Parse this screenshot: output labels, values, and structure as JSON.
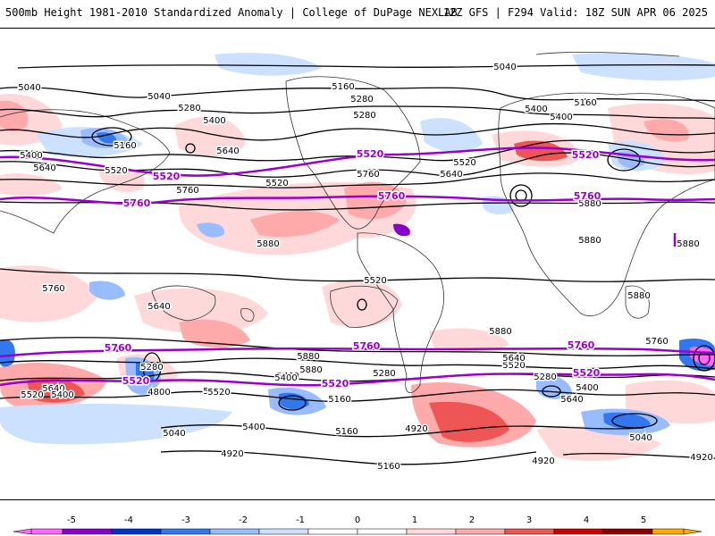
{
  "header": {
    "title": "500mb Height 1981-2010 Standardized Anomaly | College of DuPage NEXLAB",
    "run_info": "12Z GFS | F294 Valid: 18Z SUN APR 06 2025"
  },
  "colors": {
    "contour": "#000000",
    "highlight_contour": "#9900cc",
    "coast": "#333333",
    "neg5": "#ff66ff",
    "neg4": "#8800cc",
    "neg3": "#0033cc",
    "neg2": "#3377ee",
    "neg1": "#99bbff",
    "neg0": "#cce0ff",
    "pos0": "#ffd9d9",
    "pos1": "#ffaaaa",
    "pos2": "#ee5555",
    "pos3": "#cc0000",
    "pos4": "#8b0000",
    "pos5": "#ffaa00"
  },
  "contour_labels": [
    {
      "text": "5040"
    },
    {
      "text": "5040"
    },
    {
      "text": "5040"
    },
    {
      "text": "5160"
    },
    {
      "text": "5160"
    },
    {
      "text": "5280"
    },
    {
      "text": "5280"
    },
    {
      "text": "5400"
    },
    {
      "text": "5400"
    },
    {
      "text": "5160"
    },
    {
      "text": "5280"
    },
    {
      "text": "5400"
    },
    {
      "text": "5400"
    },
    {
      "text": "5640"
    },
    {
      "text": "5520"
    },
    {
      "text": "5640"
    },
    {
      "text": "5520"
    },
    {
      "text": "5760"
    },
    {
      "text": "5520"
    },
    {
      "text": "5760"
    },
    {
      "text": "5640"
    },
    {
      "text": "5880"
    },
    {
      "text": "5880"
    },
    {
      "text": "5760"
    },
    {
      "text": "5640"
    },
    {
      "text": "5520"
    },
    {
      "text": "5880"
    },
    {
      "text": "5880"
    },
    {
      "text": "5880"
    },
    {
      "text": "5880"
    },
    {
      "text": "5880"
    },
    {
      "text": "5880"
    },
    {
      "text": "5760"
    },
    {
      "text": "5280"
    },
    {
      "text": "5640"
    },
    {
      "text": "5520"
    },
    {
      "text": "5400"
    },
    {
      "text": "5520"
    },
    {
      "text": "5400"
    },
    {
      "text": "5760"
    },
    {
      "text": "5640"
    },
    {
      "text": "5400"
    },
    {
      "text": "5280"
    },
    {
      "text": "5160"
    },
    {
      "text": "5760"
    },
    {
      "text": "5640"
    },
    {
      "text": "5520"
    },
    {
      "text": "5280"
    },
    {
      "text": "5400"
    },
    {
      "text": "5160"
    },
    {
      "text": "5040"
    },
    {
      "text": "5040"
    },
    {
      "text": "4920"
    },
    {
      "text": "4920"
    },
    {
      "text": "5160"
    },
    {
      "text": "4920"
    },
    {
      "text": "4920"
    },
    {
      "text": "4800"
    }
  ],
  "highlight_labels": [
    {
      "text": "5520"
    },
    {
      "text": "5520"
    },
    {
      "text": "5520"
    },
    {
      "text": "5760"
    },
    {
      "text": "5760"
    },
    {
      "text": "5760"
    },
    {
      "text": "5760"
    },
    {
      "text": "5760"
    },
    {
      "text": "5760"
    },
    {
      "text": "5520"
    },
    {
      "text": "5520"
    },
    {
      "text": "5520"
    }
  ],
  "legend": {
    "ticks": [
      "-5",
      "-4",
      "-3",
      "-2",
      "-1",
      "0",
      "1",
      "2",
      "3",
      "4",
      "5"
    ],
    "bins": [
      {
        "color": "#ff66ff"
      },
      {
        "color": "#8800cc"
      },
      {
        "color": "#0033cc"
      },
      {
        "color": "#3377ee"
      },
      {
        "color": "#99bbff"
      },
      {
        "color": "#cce0ff"
      },
      {
        "color": "#ffffff"
      },
      {
        "color": "#ffffff"
      },
      {
        "color": "#ffd9d9"
      },
      {
        "color": "#ffaaaa"
      },
      {
        "color": "#ee5555"
      },
      {
        "color": "#cc0000"
      },
      {
        "color": "#8b0000"
      },
      {
        "color": "#ffaa00"
      }
    ]
  }
}
